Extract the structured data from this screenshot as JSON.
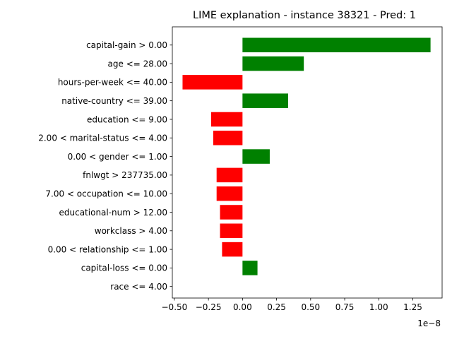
{
  "chart_data": {
    "type": "bar",
    "orientation": "horizontal",
    "title": "LIME explanation - instance 38321 - Pred: 1",
    "xlabel": "",
    "ylabel": "",
    "x_scale_exponent_label": "1e−8",
    "x_scale_factor": 1e-08,
    "xlim": [
      -0.515,
      1.465
    ],
    "x_ticks": [
      -0.5,
      -0.25,
      0.0,
      0.25,
      0.5,
      0.75,
      1.0,
      1.25
    ],
    "x_tick_labels": [
      "−0.50",
      "−0.25",
      "0.00",
      "0.25",
      "0.50",
      "0.75",
      "1.00",
      "1.25"
    ],
    "grid": false,
    "legend": "none",
    "colors": {
      "positive": "#008000",
      "negative": "#ff0000"
    },
    "categories": [
      "capital-gain > 0.00",
      "age <= 28.00",
      "hours-per-week <= 40.00",
      "native-country <= 39.00",
      "education <= 9.00",
      "2.00 < marital-status <= 4.00",
      "0.00 < gender <= 1.00",
      "fnlwgt > 237735.00",
      "7.00 < occupation <= 10.00",
      "educational-num > 12.00",
      "workclass > 4.00",
      "0.00 < relationship <= 1.00",
      "capital-loss <= 0.00",
      "race <= 4.00"
    ],
    "values": [
      1.38,
      0.45,
      -0.44,
      0.335,
      -0.23,
      -0.215,
      0.2,
      -0.19,
      -0.19,
      -0.165,
      -0.165,
      -0.15,
      0.11,
      0.0
    ]
  }
}
